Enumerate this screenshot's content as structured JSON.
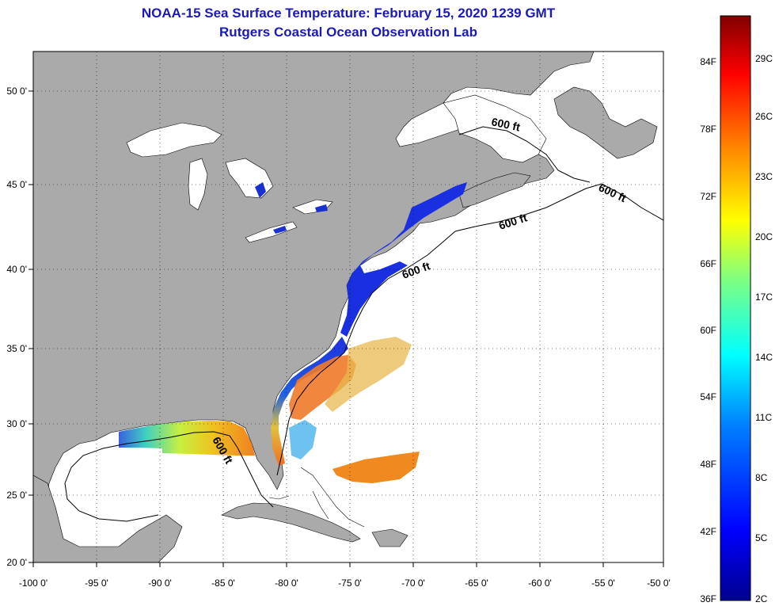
{
  "header": {
    "title_line1": "NOAA-15 Sea Surface Temperature:  February 15, 2020 1239 GMT",
    "title_line2": "Rutgers Coastal Ocean Observation Lab"
  },
  "map": {
    "lon_labels": [
      "-100 0'",
      "-95 0'",
      "-90 0'",
      "-85 0'",
      "-80 0'",
      "-75 0'",
      "-70 0'",
      "-65 0'",
      "-60 0'",
      "-55 0'",
      "-50 0'"
    ],
    "lat_labels": [
      "50 0'",
      "45 0'",
      "40 0'",
      "35 0'",
      "30 0'",
      "25 0'",
      "20 0'"
    ],
    "contour_label": "600 ft",
    "colors": {
      "land": "#aaaaaa",
      "water": "#ffffff",
      "coast": "#000000",
      "grid": "#000000"
    }
  },
  "colorbar": {
    "fahrenheit_labels": [
      "84F",
      "78F",
      "72F",
      "66F",
      "60F",
      "54F",
      "48F",
      "42F",
      "36F"
    ],
    "celsius_labels": [
      "29C",
      "26C",
      "23C",
      "20C",
      "17C",
      "14C",
      "11C",
      "8C",
      "5C",
      "2C"
    ],
    "colors": [
      "#00008f",
      "#0000ff",
      "#0080ff",
      "#00ffff",
      "#80ff80",
      "#ffff00",
      "#ff8000",
      "#ff0000",
      "#800000"
    ]
  }
}
